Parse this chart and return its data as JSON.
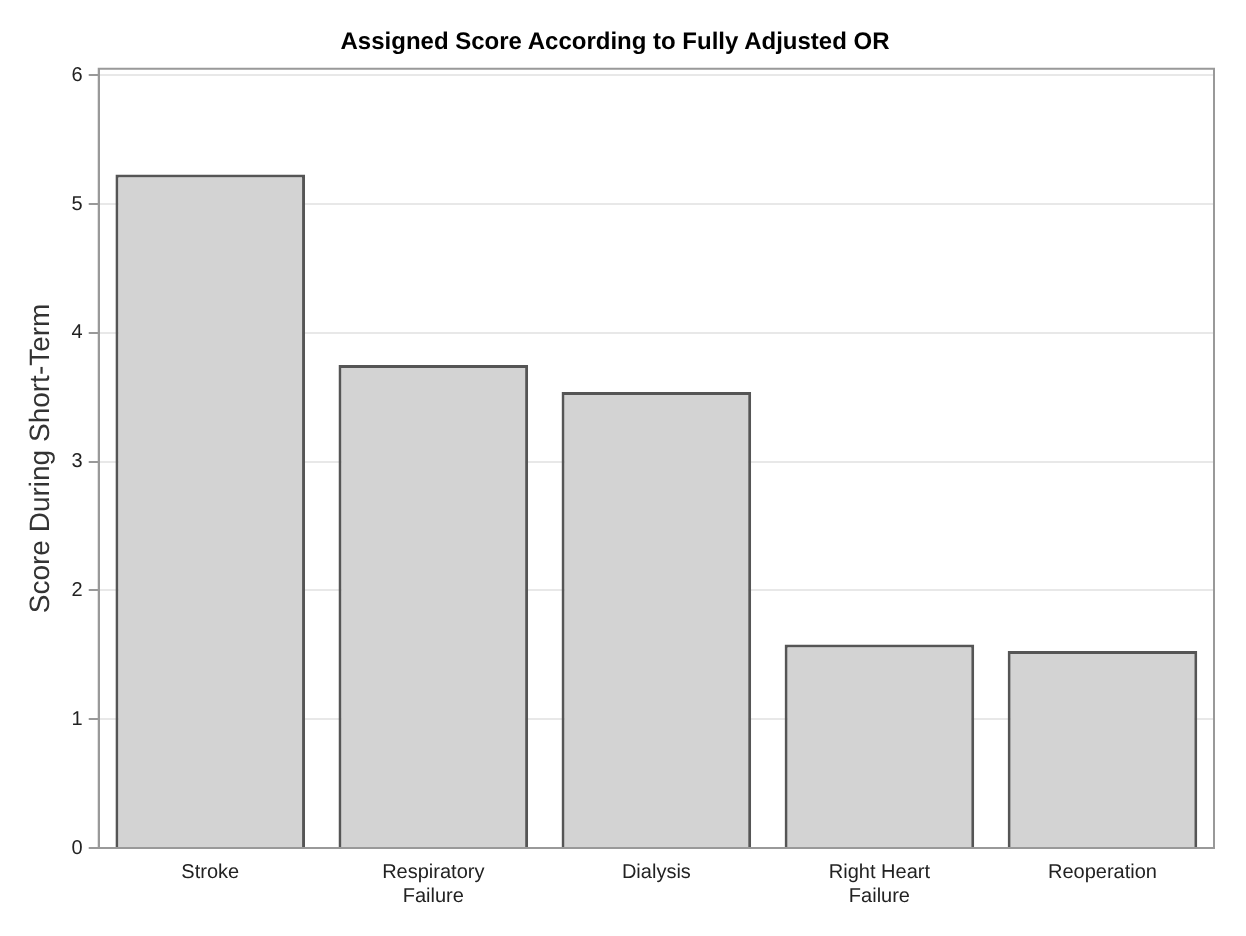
{
  "chart_data": {
    "type": "bar",
    "title": "Assigned Score According to Fully Adjusted OR",
    "ylabel": "Score During Short-Term",
    "categories": [
      "Stroke",
      "Respiratory Failure",
      "Dialysis",
      "Right Heart Failure",
      "Reoperation"
    ],
    "values": [
      5.23,
      3.75,
      3.54,
      1.58,
      1.53
    ],
    "color": "#d3d3d3",
    "ylim": [
      0,
      6.05
    ],
    "yticks": [
      0,
      1,
      2,
      3,
      4,
      5,
      6
    ],
    "grid": "y",
    "legend": false
  }
}
